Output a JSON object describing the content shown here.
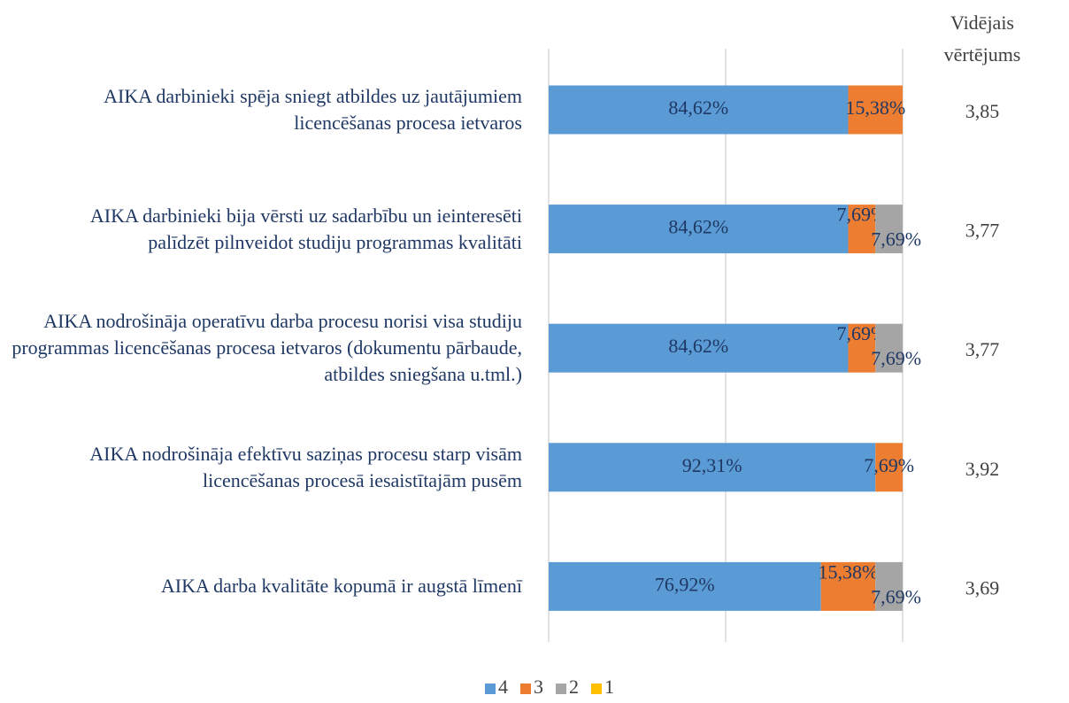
{
  "chart_data": {
    "type": "stacked_barh",
    "categories": [
      "AIKA darbinieki spēja sniegt atbildes uz jautājumiem licencēšanas procesa ietvaros",
      "AIKA darbinieki bija vērsti uz sadarbību un ieinteresēti palīdzēt pilnveidot studiju programmas kvalitāti",
      "AIKA nodrošināja operatīvu darba procesu norisi visa studiju programmas licencēšanas procesa ietvaros (dokumentu pārbaude, atbildes sniegšana u.tml.)",
      "AIKA nodrošināja efektīvu saziņas procesu starp visām licencēšanas procesā iesaistītajām pusēm",
      "AIKA darba kvalitāte kopumā ir augstā līmenī"
    ],
    "series": [
      {
        "name": "4",
        "color": "#5b9bd5",
        "values": [
          84.62,
          84.62,
          84.62,
          92.31,
          76.92
        ],
        "value_labels": [
          "84,62%",
          "84,62%",
          "84,62%",
          "92,31%",
          "76,92%"
        ]
      },
      {
        "name": "3",
        "color": "#ed7d31",
        "values": [
          15.38,
          7.69,
          7.69,
          7.69,
          15.38
        ],
        "value_labels": [
          "15,38%",
          "7,69%",
          "7,69%",
          "7,69%",
          "15,38%"
        ]
      },
      {
        "name": "2",
        "color": "#a5a5a5",
        "values": [
          0,
          7.69,
          7.69,
          0,
          7.69
        ],
        "value_labels": [
          null,
          "7,69%",
          "7,69%",
          null,
          "7,69%"
        ]
      },
      {
        "name": "1",
        "color": "#ffc000",
        "values": [
          0,
          0,
          0,
          0,
          0
        ],
        "value_labels": [
          null,
          null,
          null,
          null,
          null
        ]
      }
    ],
    "xlim": [
      0,
      100
    ],
    "xticks": [
      0,
      50,
      100
    ],
    "grid": true,
    "legend": "bottom",
    "averages": {
      "title": "Vidējais vērtējums",
      "values": [
        3.85,
        3.77,
        3.77,
        3.92,
        3.69
      ],
      "value_labels": [
        "3,85",
        "3,77",
        "3,77",
        "3,92",
        "3,69"
      ]
    }
  }
}
